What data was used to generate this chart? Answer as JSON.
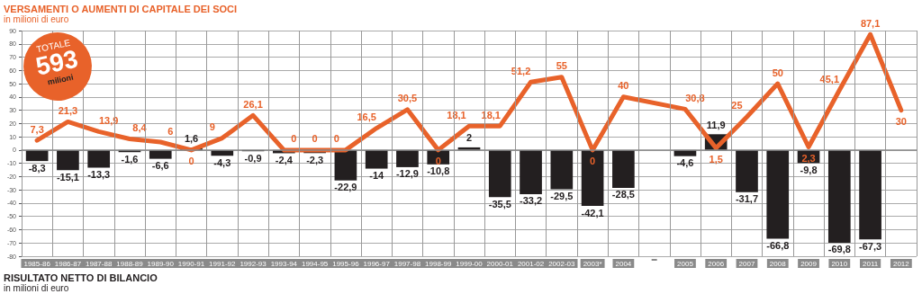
{
  "chart_data": {
    "type": "bar",
    "title": "VERSAMENTI O AUMENTI DI CAPITALE DEI SOCI",
    "subtitle": "in milioni di euro",
    "annotations": [
      "RISULTATO NETTO DI BILANCIO",
      "in milioni di euro",
      "TOTALE",
      "593",
      "milioni"
    ],
    "categories": [
      "1985-86",
      "1986-87",
      "1987-88",
      "1988-89",
      "1989-90",
      "1990-91",
      "1991-92",
      "1992-93",
      "1993-94",
      "1994-95",
      "1995-96",
      "1996-97",
      "1997-98",
      "1998-99",
      "1999-00",
      "2000-01",
      "2001-02",
      "2002-03",
      "2003*",
      "2004",
      null,
      "2005",
      "2006",
      "2007",
      "2008",
      "2009",
      "2010",
      "2011",
      "2012"
    ],
    "series": [
      {
        "type": "line",
        "color": "#e8622a",
        "values": [
          7.3,
          21.3,
          13.9,
          8.4,
          6,
          0,
          9,
          26.1,
          0,
          0,
          0,
          16.5,
          30.5,
          0,
          18.1,
          18.1,
          51.2,
          55,
          0,
          40,
          null,
          30.8,
          1.5,
          25,
          50,
          2.3,
          45.1,
          87.1,
          30
        ],
        "value_labels": [
          "7,3",
          "21,3",
          "13,9",
          "8,4",
          "6",
          "0",
          "9",
          "26,1",
          "0",
          "0",
          "0",
          "16,5",
          "30,5",
          "0",
          "18,1",
          "18,1",
          "51,2",
          "55",
          "0",
          "40",
          null,
          "30,8",
          "1,5",
          "25",
          "50",
          "2,3",
          "45,1",
          "87,1",
          "30"
        ]
      },
      {
        "color": "#231f20",
        "values": [
          -8.3,
          -15.1,
          -13.3,
          -1.6,
          -6.6,
          1.6,
          -4.3,
          -0.9,
          -2.4,
          -2.3,
          -22.9,
          -14,
          -12.9,
          -10.8,
          2,
          -35.5,
          -33.2,
          -29.5,
          -42.1,
          -28.5,
          null,
          -4.6,
          11.9,
          -31.7,
          -66.8,
          -9.8,
          -69.8,
          -67.3,
          null
        ],
        "value_labels": [
          "-8,3",
          "-15,1",
          "-13,3",
          "-1,6",
          "-6,6",
          "1,6",
          "-4,3",
          "-0,9",
          "-2,4",
          "-2,3",
          "-22,9",
          "-14",
          "-12,9",
          "-10,8",
          "2",
          "-35,5",
          "-33,2",
          "-29,5",
          "-42,1",
          "-28,5",
          null,
          "-4,6",
          "11,9",
          "-31,7",
          "-66,8",
          "-9,8",
          "-69,8",
          "-67,3",
          null
        ]
      }
    ],
    "ylim": [
      -80,
      90
    ],
    "yticks": [
      -80,
      -70,
      -60,
      -50,
      -40,
      -30,
      -20,
      -10,
      0,
      10,
      20,
      30,
      40,
      50,
      60,
      70,
      80,
      90
    ],
    "grid": true
  }
}
